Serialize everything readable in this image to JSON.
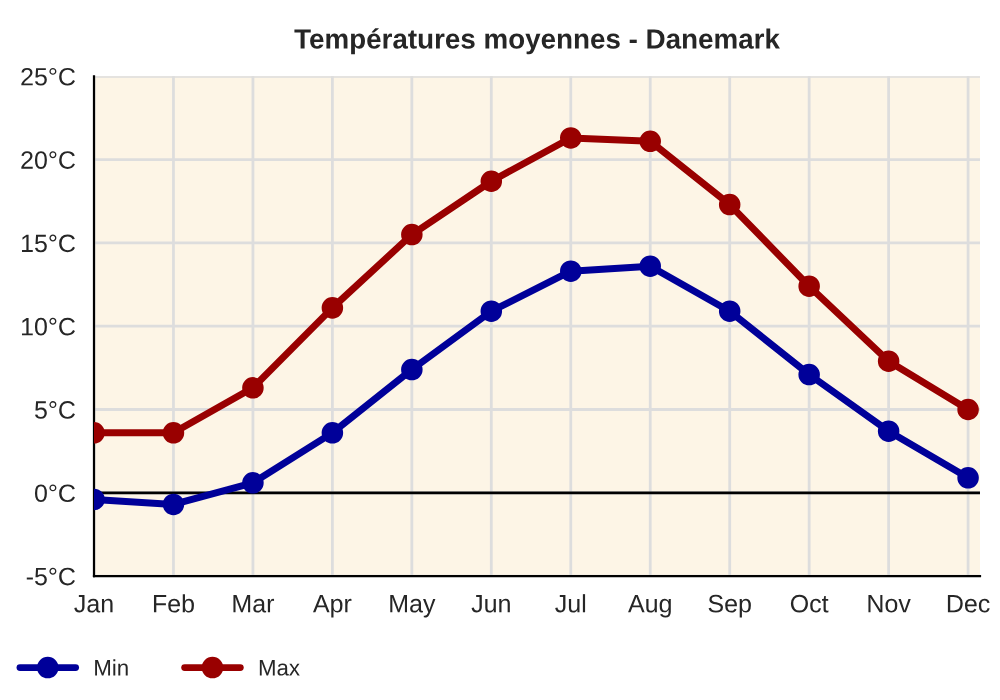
{
  "chart_data": {
    "type": "line",
    "title": "Températures moyennes - Danemark",
    "categories": [
      "Jan",
      "Feb",
      "Mar",
      "Apr",
      "May",
      "Jun",
      "Jul",
      "Aug",
      "Sep",
      "Oct",
      "Nov",
      "Dec"
    ],
    "series": [
      {
        "name": "Min",
        "color": "#000099",
        "values": [
          -0.4,
          -0.7,
          0.6,
          3.6,
          7.4,
          10.9,
          13.3,
          13.6,
          10.9,
          7.1,
          3.7,
          0.9
        ]
      },
      {
        "name": "Max",
        "color": "#990000",
        "values": [
          3.6,
          3.6,
          6.3,
          11.1,
          15.5,
          18.7,
          21.3,
          21.1,
          17.3,
          12.4,
          7.9,
          5.0
        ]
      }
    ],
    "ylim": [
      -5,
      25
    ],
    "yticks": [
      {
        "value": -5,
        "label": "-5°C"
      },
      {
        "value": 0,
        "label": "0°C"
      },
      {
        "value": 5,
        "label": "5°C"
      },
      {
        "value": 10,
        "label": "10°C"
      },
      {
        "value": 15,
        "label": "15°C"
      },
      {
        "value": 20,
        "label": "20°C"
      },
      {
        "value": 25,
        "label": "25°C"
      }
    ],
    "ref_lines": [
      {
        "axis": "y",
        "value": 0,
        "color": "#000000"
      }
    ],
    "grid": true,
    "legend": "bottom left",
    "marker": "circle",
    "line_style": "solid"
  }
}
